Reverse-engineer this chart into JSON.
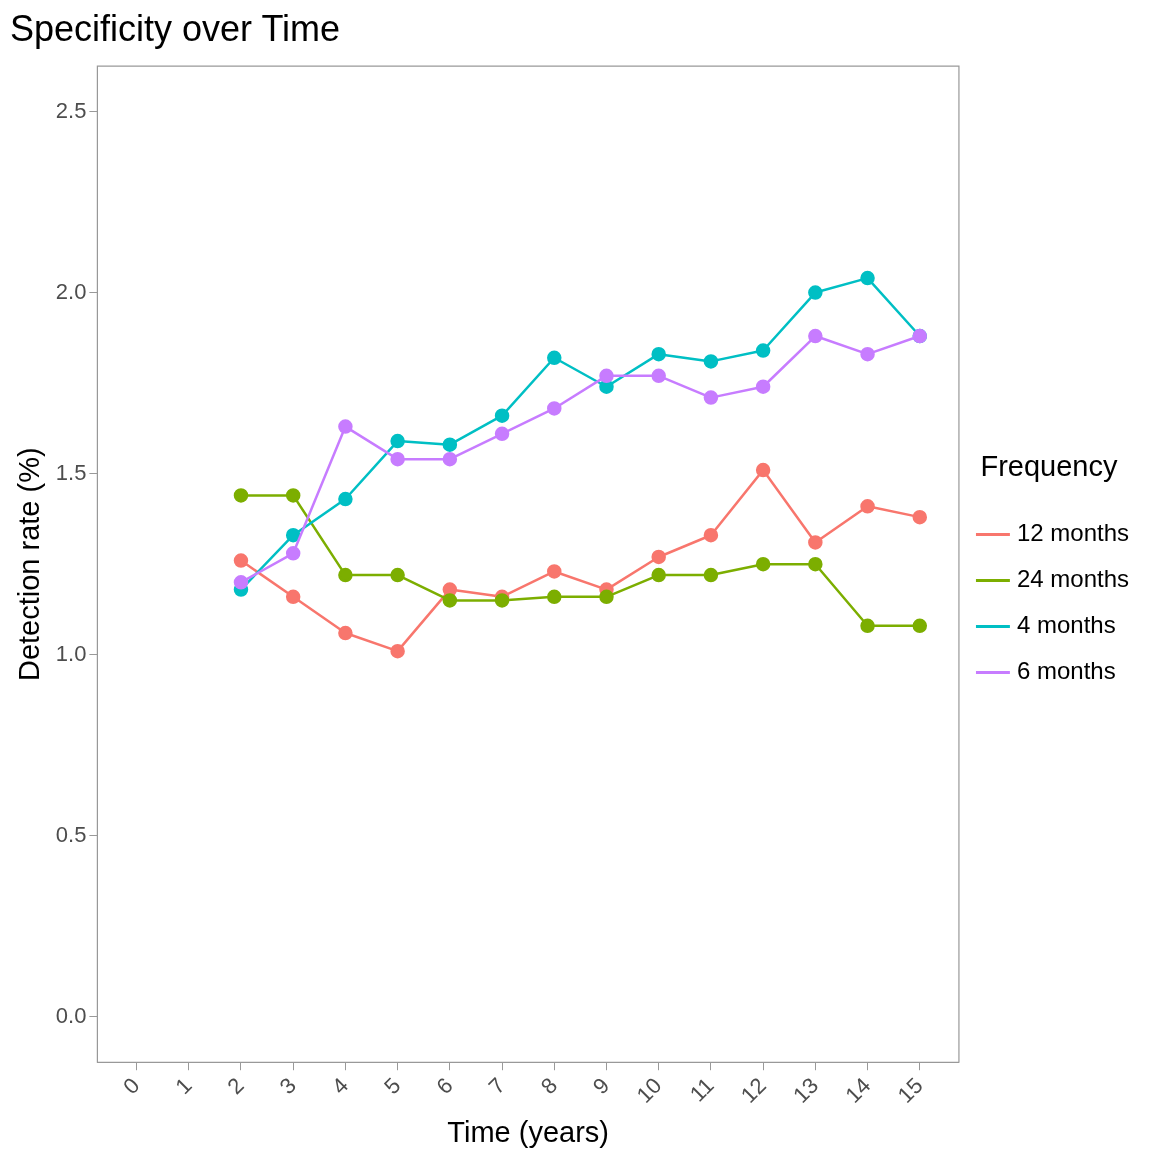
{
  "chart_data": {
    "type": "line",
    "title": "Specificity over Time",
    "xlabel": "Time (years)",
    "ylabel": "Detection rate (%)",
    "legend_title": "Frequency",
    "legend": "right",
    "marker": "circle",
    "line_style": "solid",
    "x": [
      2,
      3,
      4,
      5,
      6,
      7,
      8,
      9,
      10,
      11,
      12,
      13,
      14,
      15
    ],
    "series": [
      {
        "name": "12 months",
        "color": "#f8766d",
        "values": [
          1.26,
          1.16,
          1.06,
          1.01,
          1.18,
          1.16,
          1.23,
          1.18,
          1.27,
          1.33,
          1.51,
          1.31,
          1.41,
          1.38
        ]
      },
      {
        "name": "24 months",
        "color": "#7cae00",
        "values": [
          1.44,
          1.44,
          1.22,
          1.22,
          1.15,
          1.15,
          1.16,
          1.16,
          1.22,
          1.22,
          1.25,
          1.25,
          1.08,
          1.08
        ]
      },
      {
        "name": "4 months",
        "color": "#00bfc4",
        "values": [
          1.18,
          1.33,
          1.43,
          1.59,
          1.58,
          1.66,
          1.82,
          1.74,
          1.83,
          1.81,
          1.84,
          2.0,
          2.04,
          1.88
        ]
      },
      {
        "name": "6 months",
        "color": "#c77cff",
        "values": [
          1.2,
          1.28,
          1.63,
          1.54,
          1.54,
          1.61,
          1.68,
          1.77,
          1.77,
          1.71,
          1.74,
          1.88,
          1.83,
          1.88
        ]
      }
    ],
    "xlim": [
      -0.75,
      15.75
    ],
    "ylim": [
      -0.125,
      2.625
    ],
    "xticks": [
      0,
      1,
      2,
      3,
      4,
      5,
      6,
      7,
      8,
      9,
      10,
      11,
      12,
      13,
      14,
      15
    ],
    "yticks": [
      {
        "value": 0,
        "label": "0.0"
      },
      {
        "value": 0.5,
        "label": "0.5"
      },
      {
        "value": 1,
        "label": "1.0"
      },
      {
        "value": 1.5,
        "label": "1.5"
      },
      {
        "value": 2,
        "label": "2.0"
      },
      {
        "value": 2.5,
        "label": "2.5"
      }
    ]
  }
}
